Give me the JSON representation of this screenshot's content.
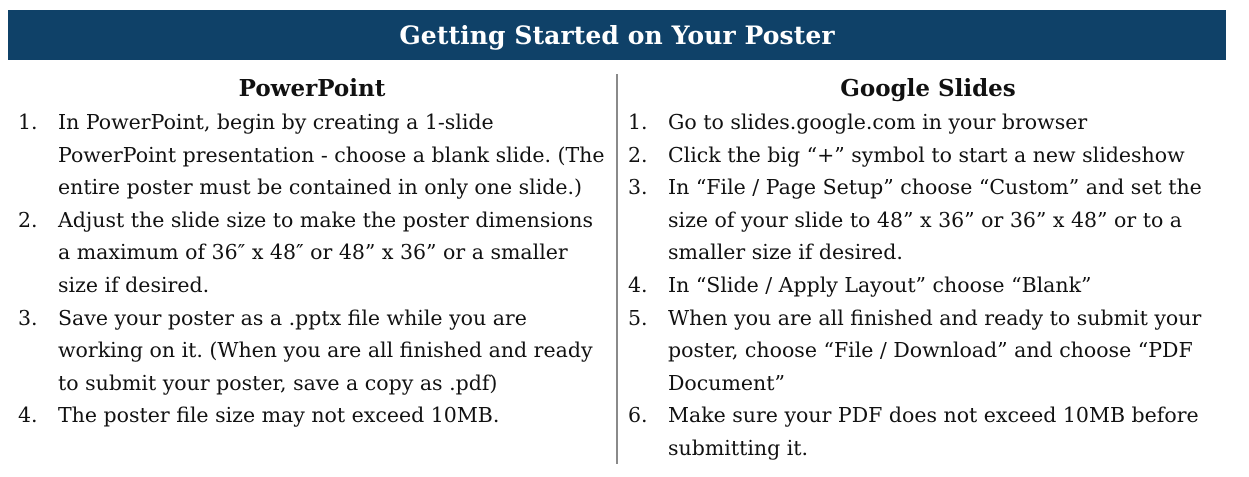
{
  "header": {
    "title": "Getting Started on Your Poster",
    "background_color": "#0f4168",
    "text_color": "#ffffff"
  },
  "columns": {
    "powerpoint": {
      "heading": "PowerPoint",
      "steps": [
        {
          "num": "1.",
          "text": "In PowerPoint, begin by creating a 1-slide PowerPoint presentation - choose a blank slide. (The entire poster must be contained in only one slide.)"
        },
        {
          "num": "2.",
          "text": "Adjust the slide size to make the poster dimensions a maximum of 36″ x 48″ or 48” x 36” or a smaller size if desired."
        },
        {
          "num": "3.",
          "text": "Save your poster as a .pptx file while you are working on it. (When you are all finished and ready to submit your poster, save a copy as .pdf)"
        },
        {
          "num": "4.",
          "text": "The poster file size may not exceed 10MB."
        }
      ]
    },
    "google_slides": {
      "heading": "Google Slides",
      "steps": [
        {
          "num": "1.",
          "text": "Go to slides.google.com in your browser"
        },
        {
          "num": "2.",
          "text": "Click the big “+” symbol to start a new slideshow"
        },
        {
          "num": "3.",
          "text": "In “File / Page Setup” choose “Custom” and set the size of your slide to 48” x 36” or 36” x 48” or to a smaller size if desired."
        },
        {
          "num": "4.",
          "text": "In “Slide / Apply Layout” choose “Blank”"
        },
        {
          "num": "5.",
          "text": "When you are all finished and ready to submit your poster, choose “File / Download” and choose “PDF Document”"
        },
        {
          "num": "6.",
          "text": "Make sure your PDF does not exceed 10MB before submitting it."
        }
      ]
    }
  }
}
